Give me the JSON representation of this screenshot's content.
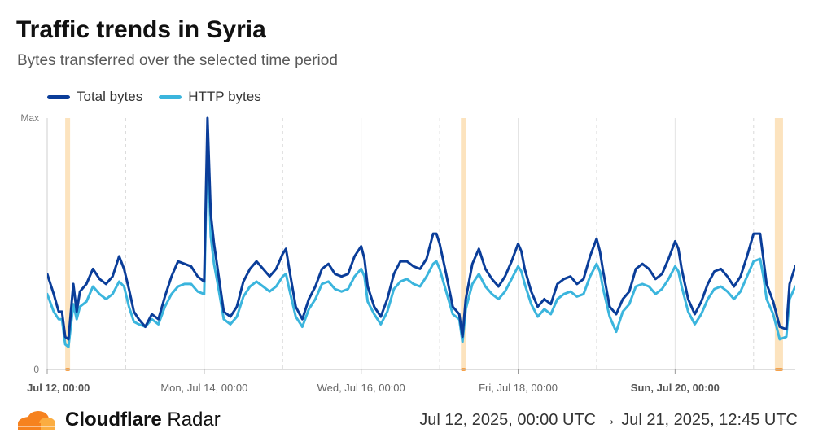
{
  "header": {
    "title": "Traffic trends in Syria",
    "subtitle": "Bytes transferred over the selected time period"
  },
  "footer": {
    "brand_bold": "Cloudflare",
    "brand_light": "Radar",
    "date_range": "Jul 12, 2025, 00:00 UTC → Jul 21, 2025, 12:45 UTC"
  },
  "colors": {
    "total": "#0a3d99",
    "http": "#3bb5dd",
    "band": "#fbd9a8",
    "band_marker": "#f6a24a",
    "grid": "#d9d9d9"
  },
  "chart_data": {
    "type": "line",
    "title": "Traffic trends in Syria",
    "subtitle": "Bytes transferred over the selected time period",
    "x_unit": "hours since Jul 12, 2025, 00:00 UTC",
    "xlim": [
      0,
      228.75
    ],
    "ylim": [
      0,
      100
    ],
    "y_tick_labels": [
      {
        "value": 0,
        "label": "0"
      },
      {
        "value": 100,
        "label": "Max"
      }
    ],
    "x_tick_labels": [
      {
        "hour": 0,
        "label": "Sat, Jul 12, 00:00",
        "bold": true
      },
      {
        "hour": 48,
        "label": "Mon, Jul 14, 00:00",
        "bold": false
      },
      {
        "hour": 96,
        "label": "Wed, Jul 16, 00:00",
        "bold": false
      },
      {
        "hour": 144,
        "label": "Fri, Jul 18, 00:00",
        "bold": false
      },
      {
        "hour": 192,
        "label": "Sun, Jul 20, 00:00",
        "bold": true
      }
    ],
    "grid_hours": [
      24,
      72,
      120,
      168,
      216
    ],
    "highlight_bands": [
      [
        5.5,
        7
      ],
      [
        126.5,
        128
      ],
      [
        222.5,
        225
      ]
    ],
    "series": [
      {
        "name": "Total bytes",
        "key": "total",
        "points": [
          [
            0,
            38
          ],
          [
            2,
            30
          ],
          [
            3.5,
            23
          ],
          [
            4.5,
            23
          ],
          [
            5.5,
            13
          ],
          [
            6.5,
            12
          ],
          [
            8,
            34
          ],
          [
            9,
            23
          ],
          [
            10,
            31
          ],
          [
            12,
            34
          ],
          [
            14,
            40
          ],
          [
            16,
            36
          ],
          [
            18,
            34
          ],
          [
            20,
            37
          ],
          [
            22,
            45
          ],
          [
            23.5,
            40
          ],
          [
            25,
            32
          ],
          [
            26.5,
            23
          ],
          [
            28,
            20
          ],
          [
            30,
            17
          ],
          [
            32,
            22
          ],
          [
            34,
            20
          ],
          [
            36,
            29
          ],
          [
            38,
            37
          ],
          [
            40,
            43
          ],
          [
            42,
            42
          ],
          [
            44,
            41
          ],
          [
            46,
            37
          ],
          [
            48,
            35
          ],
          [
            49,
            100
          ],
          [
            50,
            62
          ],
          [
            51,
            50
          ],
          [
            52,
            41
          ],
          [
            54,
            23
          ],
          [
            56,
            21
          ],
          [
            58,
            25
          ],
          [
            60,
            35
          ],
          [
            62,
            40
          ],
          [
            64,
            43
          ],
          [
            66,
            40
          ],
          [
            68,
            37
          ],
          [
            70,
            40
          ],
          [
            72,
            46
          ],
          [
            73,
            48
          ],
          [
            74,
            40
          ],
          [
            76,
            25
          ],
          [
            78,
            20
          ],
          [
            80,
            28
          ],
          [
            82,
            33
          ],
          [
            84,
            40
          ],
          [
            86,
            42
          ],
          [
            88,
            38
          ],
          [
            90,
            37
          ],
          [
            92,
            38
          ],
          [
            94,
            45
          ],
          [
            96,
            49
          ],
          [
            97,
            44
          ],
          [
            98,
            33
          ],
          [
            100,
            25
          ],
          [
            102,
            21
          ],
          [
            104,
            28
          ],
          [
            106,
            38
          ],
          [
            108,
            43
          ],
          [
            110,
            43
          ],
          [
            112,
            41
          ],
          [
            114,
            40
          ],
          [
            116,
            44
          ],
          [
            118,
            54
          ],
          [
            119,
            54
          ],
          [
            120,
            50
          ],
          [
            122,
            38
          ],
          [
            124,
            25
          ],
          [
            126,
            22
          ],
          [
            127,
            13
          ],
          [
            128,
            28
          ],
          [
            130,
            42
          ],
          [
            132,
            48
          ],
          [
            134,
            40
          ],
          [
            136,
            36
          ],
          [
            138,
            33
          ],
          [
            140,
            37
          ],
          [
            142,
            43
          ],
          [
            144,
            50
          ],
          [
            145,
            47
          ],
          [
            146,
            40
          ],
          [
            148,
            31
          ],
          [
            150,
            25
          ],
          [
            152,
            28
          ],
          [
            154,
            26
          ],
          [
            156,
            34
          ],
          [
            158,
            36
          ],
          [
            160,
            37
          ],
          [
            162,
            34
          ],
          [
            164,
            36
          ],
          [
            166,
            45
          ],
          [
            168,
            52
          ],
          [
            169,
            47
          ],
          [
            170,
            39
          ],
          [
            172,
            25
          ],
          [
            174,
            22
          ],
          [
            176,
            28
          ],
          [
            178,
            31
          ],
          [
            180,
            40
          ],
          [
            182,
            42
          ],
          [
            184,
            40
          ],
          [
            186,
            36
          ],
          [
            188,
            38
          ],
          [
            190,
            44
          ],
          [
            192,
            51
          ],
          [
            193,
            48
          ],
          [
            194,
            40
          ],
          [
            196,
            28
          ],
          [
            198,
            22
          ],
          [
            200,
            27
          ],
          [
            202,
            34
          ],
          [
            204,
            39
          ],
          [
            206,
            40
          ],
          [
            208,
            37
          ],
          [
            210,
            33
          ],
          [
            212,
            37
          ],
          [
            214,
            45
          ],
          [
            216,
            54
          ],
          [
            218,
            54
          ],
          [
            219,
            44
          ],
          [
            220,
            34
          ],
          [
            222,
            27
          ],
          [
            224,
            17
          ],
          [
            226,
            16
          ],
          [
            227,
            34
          ],
          [
            228.75,
            41
          ]
        ]
      },
      {
        "name": "HTTP bytes",
        "key": "http",
        "points": [
          [
            0,
            30
          ],
          [
            2,
            23
          ],
          [
            3.5,
            20
          ],
          [
            4.5,
            20
          ],
          [
            5.5,
            10
          ],
          [
            6.5,
            9
          ],
          [
            8,
            26
          ],
          [
            9,
            20
          ],
          [
            10,
            25
          ],
          [
            12,
            27
          ],
          [
            14,
            33
          ],
          [
            16,
            30
          ],
          [
            18,
            28
          ],
          [
            20,
            30
          ],
          [
            22,
            35
          ],
          [
            23.5,
            33
          ],
          [
            25,
            25
          ],
          [
            26.5,
            19
          ],
          [
            28,
            18
          ],
          [
            30,
            17
          ],
          [
            32,
            20
          ],
          [
            34,
            18
          ],
          [
            36,
            25
          ],
          [
            38,
            30
          ],
          [
            40,
            33
          ],
          [
            42,
            34
          ],
          [
            44,
            34
          ],
          [
            46,
            31
          ],
          [
            48,
            30
          ],
          [
            49,
            92
          ],
          [
            50,
            53
          ],
          [
            51,
            42
          ],
          [
            52,
            35
          ],
          [
            54,
            20
          ],
          [
            56,
            18
          ],
          [
            58,
            21
          ],
          [
            60,
            29
          ],
          [
            62,
            33
          ],
          [
            64,
            35
          ],
          [
            66,
            33
          ],
          [
            68,
            31
          ],
          [
            70,
            33
          ],
          [
            72,
            37
          ],
          [
            73,
            38
          ],
          [
            74,
            32
          ],
          [
            76,
            21
          ],
          [
            78,
            17
          ],
          [
            80,
            24
          ],
          [
            82,
            28
          ],
          [
            84,
            34
          ],
          [
            86,
            35
          ],
          [
            88,
            32
          ],
          [
            90,
            31
          ],
          [
            92,
            32
          ],
          [
            94,
            37
          ],
          [
            96,
            40
          ],
          [
            97,
            37
          ],
          [
            98,
            27
          ],
          [
            100,
            22
          ],
          [
            102,
            18
          ],
          [
            104,
            23
          ],
          [
            106,
            32
          ],
          [
            108,
            35
          ],
          [
            110,
            36
          ],
          [
            112,
            34
          ],
          [
            114,
            33
          ],
          [
            116,
            37
          ],
          [
            118,
            42
          ],
          [
            119,
            43
          ],
          [
            120,
            40
          ],
          [
            122,
            31
          ],
          [
            124,
            22
          ],
          [
            126,
            20
          ],
          [
            127,
            11
          ],
          [
            128,
            24
          ],
          [
            130,
            34
          ],
          [
            132,
            38
          ],
          [
            134,
            33
          ],
          [
            136,
            30
          ],
          [
            138,
            28
          ],
          [
            140,
            31
          ],
          [
            142,
            36
          ],
          [
            144,
            41
          ],
          [
            145,
            39
          ],
          [
            146,
            34
          ],
          [
            148,
            26
          ],
          [
            150,
            21
          ],
          [
            152,
            24
          ],
          [
            154,
            22
          ],
          [
            156,
            28
          ],
          [
            158,
            30
          ],
          [
            160,
            31
          ],
          [
            162,
            29
          ],
          [
            164,
            30
          ],
          [
            166,
            37
          ],
          [
            168,
            42
          ],
          [
            169,
            39
          ],
          [
            170,
            32
          ],
          [
            172,
            21
          ],
          [
            174,
            15
          ],
          [
            176,
            23
          ],
          [
            178,
            26
          ],
          [
            180,
            33
          ],
          [
            182,
            34
          ],
          [
            184,
            33
          ],
          [
            186,
            30
          ],
          [
            188,
            32
          ],
          [
            190,
            36
          ],
          [
            192,
            41
          ],
          [
            193,
            39
          ],
          [
            194,
            33
          ],
          [
            196,
            23
          ],
          [
            198,
            18
          ],
          [
            200,
            22
          ],
          [
            202,
            28
          ],
          [
            204,
            32
          ],
          [
            206,
            33
          ],
          [
            208,
            31
          ],
          [
            210,
            28
          ],
          [
            212,
            31
          ],
          [
            214,
            37
          ],
          [
            216,
            43
          ],
          [
            218,
            44
          ],
          [
            219,
            37
          ],
          [
            220,
            28
          ],
          [
            222,
            22
          ],
          [
            224,
            12
          ],
          [
            226,
            13
          ],
          [
            227,
            28
          ],
          [
            228.75,
            33
          ]
        ]
      }
    ]
  }
}
